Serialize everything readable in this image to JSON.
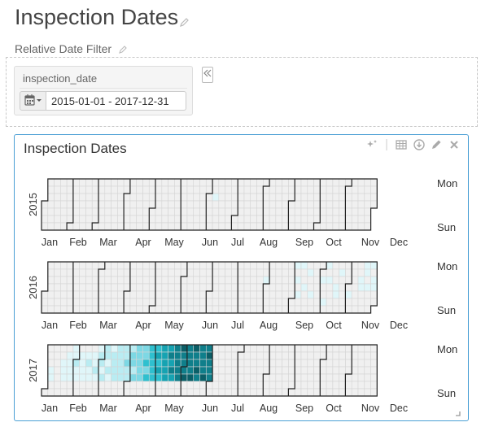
{
  "page": {
    "title": "Inspection Dates",
    "filter_label": "Relative Date Filter"
  },
  "filter": {
    "field_label": "inspection_date",
    "date_range": "2015-01-01 - 2017-12-31"
  },
  "chart_panel": {
    "title": "Inspection Dates",
    "toolbar_icons": [
      "sparkles-icon",
      "table-icon",
      "download-icon",
      "pencil-icon",
      "close-icon"
    ]
  },
  "chart_data": {
    "type": "heatmap",
    "years": [
      "2015",
      "2016",
      "2017"
    ],
    "month_labels": [
      "Jan",
      "Feb",
      "Mar",
      "Apr",
      "May",
      "Jun",
      "Jul",
      "Aug",
      "Sep",
      "Oct",
      "Nov",
      "Dec"
    ],
    "weekday_labels": [
      "Mon",
      "Sun"
    ],
    "color_scale": [
      "#f0f0f0",
      "#e0f6f9",
      "#b9ecf2",
      "#7dd8e4",
      "#2fc0cf",
      "#16a3b2",
      "#0f7f8b",
      "#0b5f68"
    ],
    "approx_activity_by_year_week": [
      {
        "year": "2015",
        "weeks_with_activity": [
          {
            "week": 27,
            "days": [
              {
                "dow": 2,
                "level": 1
              }
            ]
          }
        ]
      },
      {
        "year": "2016",
        "weeks_with_activity": [
          {
            "week": 35,
            "days": [
              {
                "dow": 2,
                "level": 1
              }
            ]
          },
          {
            "week": 40,
            "days": [
              {
                "dow": 0,
                "level": 1
              },
              {
                "dow": 2,
                "level": 1
              },
              {
                "dow": 4,
                "level": 1
              }
            ]
          },
          {
            "week": 41,
            "days": [
              {
                "dow": 0,
                "level": 1
              },
              {
                "dow": 3,
                "level": 1
              }
            ]
          },
          {
            "week": 42,
            "days": [
              {
                "dow": 1,
                "level": 1
              },
              {
                "dow": 4,
                "level": 1
              }
            ]
          },
          {
            "week": 44,
            "days": [
              {
                "dow": 2,
                "level": 1
              },
              {
                "dow": 5,
                "level": 1
              }
            ]
          },
          {
            "week": 45,
            "days": [
              {
                "dow": 0,
                "level": 1
              },
              {
                "dow": 2,
                "level": 1
              }
            ]
          },
          {
            "week": 46,
            "days": [
              {
                "dow": 3,
                "level": 1
              },
              {
                "dow": 4,
                "level": 1
              }
            ]
          },
          {
            "week": 47,
            "days": [
              {
                "dow": 1,
                "level": 1
              }
            ]
          },
          {
            "week": 48,
            "days": [
              {
                "dow": 4,
                "level": 1
              }
            ]
          },
          {
            "week": 50,
            "days": [
              {
                "dow": 2,
                "level": 1
              },
              {
                "dow": 3,
                "level": 1
              }
            ]
          },
          {
            "week": 51,
            "days": [
              {
                "dow": 0,
                "level": 1
              },
              {
                "dow": 1,
                "level": 1
              },
              {
                "dow": 3,
                "level": 1
              }
            ]
          },
          {
            "week": 52,
            "days": [
              {
                "dow": 0,
                "level": 1
              },
              {
                "dow": 2,
                "level": 1
              },
              {
                "dow": 3,
                "level": 1
              }
            ]
          }
        ]
      },
      {
        "year": "2017",
        "weeks_with_activity": [
          {
            "week": 1,
            "days": [
              {
                "dow": 3,
                "level": 1
              },
              {
                "dow": 4,
                "level": 1
              }
            ]
          },
          {
            "week": 3,
            "days": [
              {
                "dow": 2,
                "level": 1
              },
              {
                "dow": 3,
                "level": 1
              },
              {
                "dow": 4,
                "level": 1
              }
            ]
          },
          {
            "week": 4,
            "days": [
              {
                "dow": 1,
                "level": 1
              },
              {
                "dow": 2,
                "level": 1
              },
              {
                "dow": 3,
                "level": 1
              },
              {
                "dow": 4,
                "level": 1
              }
            ]
          },
          {
            "week": 5,
            "days": [
              {
                "dow": 0,
                "level": 1
              },
              {
                "dow": 1,
                "level": 1
              },
              {
                "dow": 2,
                "level": 2
              },
              {
                "dow": 3,
                "level": 1
              },
              {
                "dow": 4,
                "level": 1
              }
            ]
          },
          {
            "week": 6,
            "days": [
              {
                "dow": 1,
                "level": 1
              },
              {
                "dow": 2,
                "level": 1
              },
              {
                "dow": 3,
                "level": 1
              },
              {
                "dow": 4,
                "level": 1
              }
            ]
          },
          {
            "week": 7,
            "days": [
              {
                "dow": 1,
                "level": 1
              },
              {
                "dow": 2,
                "level": 2
              },
              {
                "dow": 3,
                "level": 1
              },
              {
                "dow": 4,
                "level": 1
              }
            ]
          },
          {
            "week": 8,
            "days": [
              {
                "dow": 1,
                "level": 1
              },
              {
                "dow": 2,
                "level": 1
              },
              {
                "dow": 3,
                "level": 2
              },
              {
                "dow": 4,
                "level": 1
              }
            ]
          },
          {
            "week": 9,
            "days": [
              {
                "dow": 0,
                "level": 1
              },
              {
                "dow": 1,
                "level": 2
              },
              {
                "dow": 2,
                "level": 2
              },
              {
                "dow": 3,
                "level": 1
              },
              {
                "dow": 4,
                "level": 2
              }
            ]
          },
          {
            "week": 10,
            "days": [
              {
                "dow": 0,
                "level": 2
              },
              {
                "dow": 1,
                "level": 2
              },
              {
                "dow": 2,
                "level": 1
              },
              {
                "dow": 3,
                "level": 2
              },
              {
                "dow": 4,
                "level": 1
              }
            ]
          },
          {
            "week": 11,
            "days": [
              {
                "dow": 0,
                "level": 1
              },
              {
                "dow": 1,
                "level": 2
              },
              {
                "dow": 2,
                "level": 2
              },
              {
                "dow": 3,
                "level": 2
              },
              {
                "dow": 4,
                "level": 2
              }
            ]
          },
          {
            "week": 12,
            "days": [
              {
                "dow": 0,
                "level": 2
              },
              {
                "dow": 1,
                "level": 2
              },
              {
                "dow": 2,
                "level": 2
              },
              {
                "dow": 3,
                "level": 2
              },
              {
                "dow": 4,
                "level": 2
              }
            ]
          },
          {
            "week": 13,
            "days": [
              {
                "dow": 0,
                "level": 2
              },
              {
                "dow": 1,
                "level": 2
              },
              {
                "dow": 2,
                "level": 3
              },
              {
                "dow": 3,
                "level": 2
              },
              {
                "dow": 4,
                "level": 2
              }
            ]
          },
          {
            "week": 14,
            "days": [
              {
                "dow": 0,
                "level": 2
              },
              {
                "dow": 1,
                "level": 3
              },
              {
                "dow": 2,
                "level": 3
              },
              {
                "dow": 3,
                "level": 2
              },
              {
                "dow": 4,
                "level": 3
              }
            ]
          },
          {
            "week": 15,
            "days": [
              {
                "dow": 0,
                "level": 3
              },
              {
                "dow": 1,
                "level": 3
              },
              {
                "dow": 2,
                "level": 3
              },
              {
                "dow": 3,
                "level": 3
              },
              {
                "dow": 4,
                "level": 3
              }
            ]
          },
          {
            "week": 16,
            "days": [
              {
                "dow": 0,
                "level": 3
              },
              {
                "dow": 1,
                "level": 3
              },
              {
                "dow": 2,
                "level": 4
              },
              {
                "dow": 3,
                "level": 3
              },
              {
                "dow": 4,
                "level": 4
              }
            ]
          },
          {
            "week": 17,
            "days": [
              {
                "dow": 0,
                "level": 4
              },
              {
                "dow": 1,
                "level": 4
              },
              {
                "dow": 2,
                "level": 4
              },
              {
                "dow": 3,
                "level": 4
              },
              {
                "dow": 4,
                "level": 4
              }
            ]
          },
          {
            "week": 18,
            "days": [
              {
                "dow": 0,
                "level": 4
              },
              {
                "dow": 1,
                "level": 5
              },
              {
                "dow": 2,
                "level": 4
              },
              {
                "dow": 3,
                "level": 5
              },
              {
                "dow": 4,
                "level": 4
              }
            ]
          },
          {
            "week": 19,
            "days": [
              {
                "dow": 0,
                "level": 5
              },
              {
                "dow": 1,
                "level": 5
              },
              {
                "dow": 2,
                "level": 5
              },
              {
                "dow": 3,
                "level": 5
              },
              {
                "dow": 4,
                "level": 5
              }
            ]
          },
          {
            "week": 20,
            "days": [
              {
                "dow": 0,
                "level": 5
              },
              {
                "dow": 1,
                "level": 6
              },
              {
                "dow": 2,
                "level": 5
              },
              {
                "dow": 3,
                "level": 6
              },
              {
                "dow": 4,
                "level": 5
              }
            ]
          },
          {
            "week": 21,
            "days": [
              {
                "dow": 0,
                "level": 6
              },
              {
                "dow": 1,
                "level": 6
              },
              {
                "dow": 2,
                "level": 6
              },
              {
                "dow": 3,
                "level": 6
              },
              {
                "dow": 4,
                "level": 6
              }
            ]
          },
          {
            "week": 22,
            "days": [
              {
                "dow": 0,
                "level": 7
              },
              {
                "dow": 1,
                "level": 6
              },
              {
                "dow": 2,
                "level": 6
              },
              {
                "dow": 3,
                "level": 6
              },
              {
                "dow": 4,
                "level": 7
              }
            ]
          },
          {
            "week": 23,
            "days": [
              {
                "dow": 0,
                "level": 6
              },
              {
                "dow": 1,
                "level": 6
              },
              {
                "dow": 2,
                "level": 6
              },
              {
                "dow": 3,
                "level": 6
              },
              {
                "dow": 4,
                "level": 7
              }
            ]
          },
          {
            "week": 24,
            "days": [
              {
                "dow": 0,
                "level": 7
              },
              {
                "dow": 1,
                "level": 6
              },
              {
                "dow": 2,
                "level": 6
              },
              {
                "dow": 3,
                "level": 7
              },
              {
                "dow": 4,
                "level": 6
              }
            ]
          },
          {
            "week": 25,
            "days": [
              {
                "dow": 0,
                "level": 6
              },
              {
                "dow": 1,
                "level": 6
              },
              {
                "dow": 2,
                "level": 6
              },
              {
                "dow": 3,
                "level": 6
              },
              {
                "dow": 4,
                "level": 7
              }
            ]
          },
          {
            "week": 26,
            "days": [
              {
                "dow": 0,
                "level": 6
              },
              {
                "dow": 1,
                "level": 7
              },
              {
                "dow": 2,
                "level": 6
              },
              {
                "dow": 3,
                "level": 6
              },
              {
                "dow": 4,
                "level": 6
              }
            ]
          }
        ]
      }
    ]
  }
}
